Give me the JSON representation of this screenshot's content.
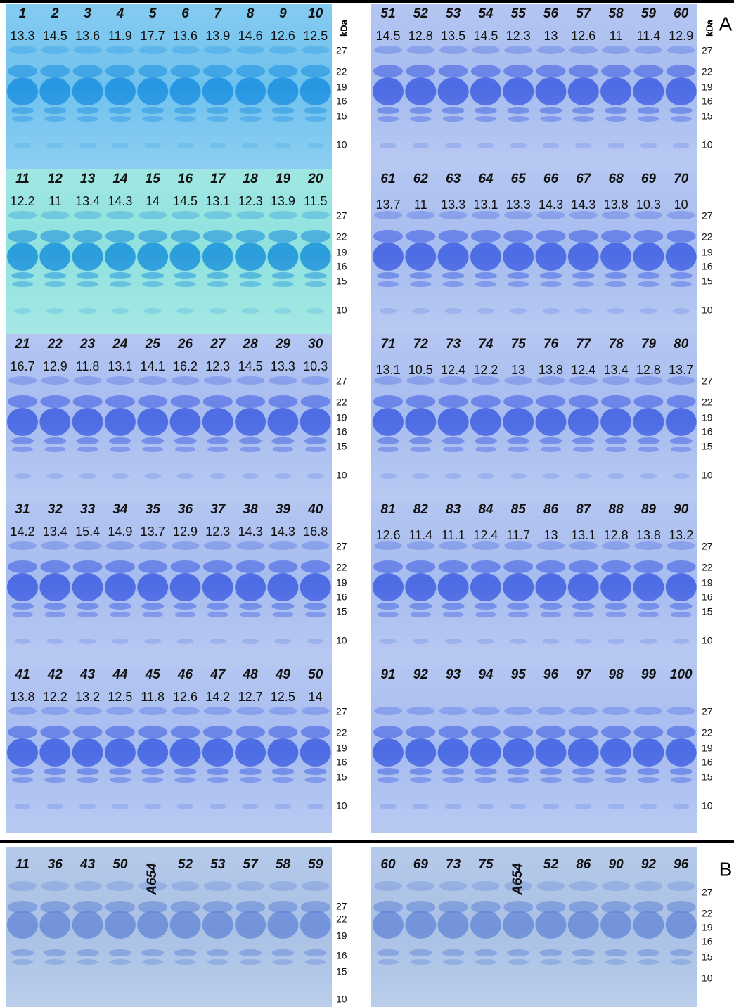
{
  "panel_a": {
    "label": "A",
    "unit": "kDa",
    "left": [
      {
        "lanes": [
          "1",
          "2",
          "3",
          "4",
          "5",
          "6",
          "7",
          "8",
          "9",
          "10"
        ],
        "values": [
          "13.3",
          "14.5",
          "13.6",
          "11.9",
          "17.7",
          "13.6",
          "13.9",
          "14.6",
          "12.6",
          "12.5"
        ],
        "markers": [
          "27",
          "22",
          "19",
          "16",
          "15",
          "10"
        ]
      },
      {
        "lanes": [
          "11",
          "12",
          "13",
          "14",
          "15",
          "16",
          "17",
          "18",
          "19",
          "20"
        ],
        "values": [
          "12.2",
          "11",
          "13.4",
          "14.3",
          "14",
          "14.5",
          "13.1",
          "12.3",
          "13.9",
          "11.5"
        ],
        "markers": [
          "27",
          "22",
          "19",
          "16",
          "15",
          "10"
        ]
      },
      {
        "lanes": [
          "21",
          "22",
          "23",
          "24",
          "25",
          "26",
          "27",
          "28",
          "29",
          "30"
        ],
        "values": [
          "16.7",
          "12.9",
          "11.8",
          "13.1",
          "14.1",
          "16.2",
          "12.3",
          "14.5",
          "13.3",
          "10.3"
        ],
        "markers": [
          "27",
          "22",
          "19",
          "16",
          "15",
          "10"
        ]
      },
      {
        "lanes": [
          "31",
          "32",
          "33",
          "34",
          "35",
          "36",
          "37",
          "38",
          "39",
          "40"
        ],
        "values": [
          "14.2",
          "13.4",
          "15.4",
          "14.9",
          "13.7",
          "12.9",
          "12.3",
          "14.3",
          "14.3",
          "16.8"
        ],
        "markers": [
          "27",
          "22",
          "19",
          "16",
          "15",
          "10"
        ]
      },
      {
        "lanes": [
          "41",
          "42",
          "43",
          "44",
          "45",
          "46",
          "47",
          "48",
          "49",
          "50"
        ],
        "values": [
          "13.8",
          "12.2",
          "13.2",
          "12.5",
          "11.8",
          "12.6",
          "14.2",
          "12.7",
          "12.5",
          "14"
        ],
        "markers": [
          "27",
          "22",
          "19",
          "16",
          "15",
          "10"
        ]
      }
    ],
    "right": [
      {
        "lanes": [
          "51",
          "52",
          "53",
          "54",
          "55",
          "56",
          "57",
          "58",
          "59",
          "60"
        ],
        "values": [
          "14.5",
          "12.8",
          "13.5",
          "14.5",
          "12.3",
          "13",
          "12.6",
          "11",
          "11.4",
          "12.9"
        ],
        "markers": [
          "27",
          "22",
          "19",
          "16",
          "15",
          "10"
        ]
      },
      {
        "lanes": [
          "61",
          "62",
          "63",
          "64",
          "65",
          "66",
          "67",
          "68",
          "69",
          "70"
        ],
        "values": [
          "13.7",
          "11",
          "13.3",
          "13.1",
          "13.3",
          "14.3",
          "14.3",
          "13.8",
          "10.3",
          "10"
        ],
        "markers": [
          "27",
          "22",
          "19",
          "16",
          "15",
          "10"
        ]
      },
      {
        "lanes": [
          "71",
          "72",
          "73",
          "74",
          "75",
          "76",
          "77",
          "78",
          "79",
          "80"
        ],
        "values": [
          "13.1",
          "10.5",
          "12.4",
          "12.2",
          "13",
          "13.8",
          "12.4",
          "13.4",
          "12.8",
          "13.7"
        ],
        "markers": [
          "27",
          "22",
          "19",
          "16",
          "15",
          "10"
        ]
      },
      {
        "lanes": [
          "81",
          "82",
          "83",
          "84",
          "85",
          "86",
          "87",
          "88",
          "89",
          "90"
        ],
        "values": [
          "12.6",
          "11.4",
          "11.1",
          "12.4",
          "11.7",
          "13",
          "13.1",
          "12.8",
          "13.8",
          "13.2"
        ],
        "markers": [
          "27",
          "22",
          "19",
          "16",
          "15",
          "10"
        ]
      },
      {
        "lanes": [
          "91",
          "92",
          "93",
          "94",
          "95",
          "96",
          "97",
          "98",
          "99",
          "100"
        ],
        "markers": [
          "27",
          "22",
          "19",
          "16",
          "15",
          "10"
        ]
      }
    ]
  },
  "panel_b": {
    "label": "B",
    "left": {
      "lanes": [
        "11",
        "36",
        "43",
        "50",
        "A654",
        "52",
        "53",
        "57",
        "58",
        "59"
      ],
      "markers": [
        "27",
        "22",
        "19",
        "16",
        "15",
        "10"
      ]
    },
    "right": {
      "lanes": [
        "60",
        "69",
        "73",
        "75",
        "A654",
        "52",
        "86",
        "90",
        "92",
        "96"
      ],
      "markers": [
        "27",
        "22",
        "19",
        "16",
        "15",
        "10"
      ]
    }
  }
}
